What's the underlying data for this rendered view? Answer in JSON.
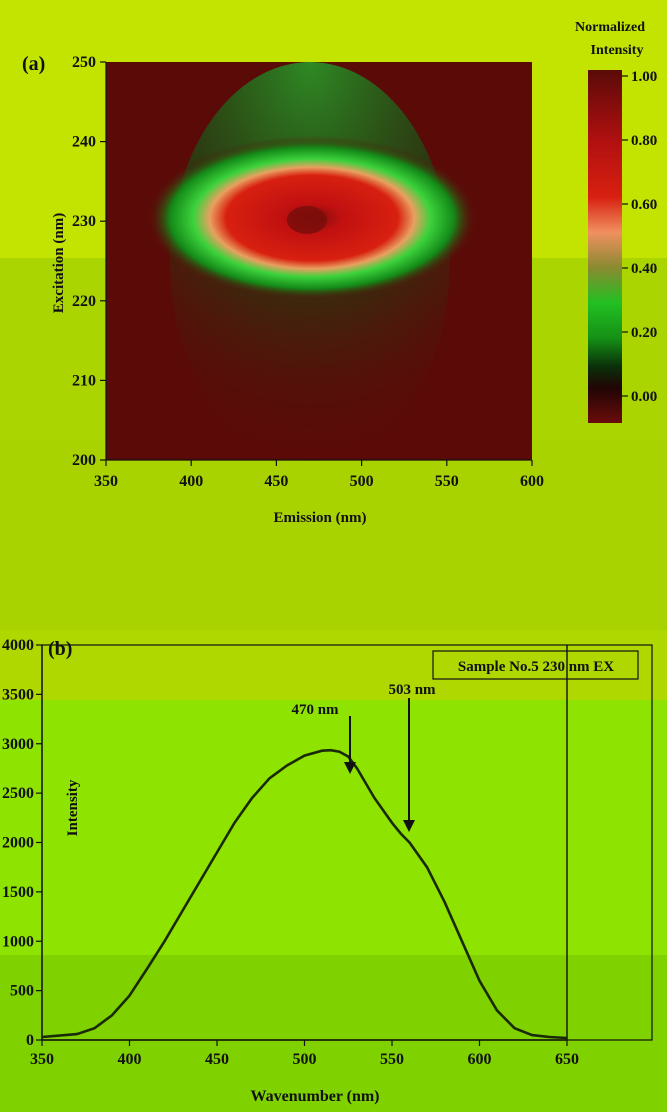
{
  "colors": {
    "band_top": "#c3e300",
    "band_mid": "#abd500",
    "band_b_top": "#aed800",
    "band_b_mid": "#8fe300",
    "band_b_low": "#7fd100",
    "heatmap_bg": "#5a0b08",
    "curve": "#1a2a06"
  },
  "panel_a": {
    "panel_label": "(a)",
    "colorbar_title_line1": "Normalized",
    "colorbar_title_line2": "Intensity",
    "colorbar_ticks": [
      "1.00",
      "0.80",
      "0.60",
      "0.40",
      "0.20",
      "0.00"
    ],
    "ylabel": "Excitation (nm)",
    "xlabel": "Emission (nm)"
  },
  "panel_b": {
    "panel_label": "(b)",
    "legend": "Sample No.5 230 nm EX",
    "annotation_1": "470 nm",
    "annotation_2": "503 nm",
    "ylabel": "Intensity",
    "xlabel": "Wavenumber (nm)"
  },
  "chart_data": [
    {
      "type": "heatmap",
      "xlabel": "Emission (nm)",
      "ylabel": "Excitation (nm)",
      "xlim": [
        350,
        600
      ],
      "ylim": [
        200,
        250
      ],
      "xticks": [
        350,
        400,
        450,
        500,
        550,
        600
      ],
      "yticks": [
        200,
        210,
        220,
        230,
        240,
        250
      ],
      "colorbar": {
        "title": "Normalized Intensity",
        "range": [
          0,
          1
        ],
        "ticks": [
          0.0,
          0.2,
          0.4,
          0.6,
          0.8,
          1.0
        ]
      },
      "peak": {
        "emission": 460,
        "excitation": 230,
        "value": 1.0
      }
    },
    {
      "type": "line",
      "xlabel": "Wavenumber (nm)",
      "ylabel": "Intensity",
      "xlim": [
        350,
        650
      ],
      "ylim": [
        0,
        4000
      ],
      "xticks": [
        350,
        400,
        450,
        500,
        550,
        600,
        650
      ],
      "yticks": [
        0,
        500,
        1000,
        1500,
        2000,
        2500,
        3000,
        3500,
        4000
      ],
      "series": [
        {
          "name": "Sample No.5 230 nm EX",
          "x": [
            350,
            370,
            380,
            390,
            400,
            410,
            420,
            430,
            440,
            450,
            460,
            470,
            480,
            490,
            500,
            510,
            515,
            520,
            525,
            530,
            540,
            550,
            555,
            560,
            570,
            580,
            590,
            600,
            610,
            620,
            630,
            640,
            650
          ],
          "y": [
            30,
            60,
            120,
            250,
            450,
            720,
            1000,
            1300,
            1600,
            1900,
            2200,
            2450,
            2650,
            2780,
            2880,
            2930,
            2935,
            2920,
            2870,
            2750,
            2450,
            2200,
            2090,
            2000,
            1750,
            1400,
            1000,
            600,
            300,
            120,
            50,
            30,
            20
          ]
        }
      ],
      "annotations": [
        {
          "text": "470 nm",
          "x": 520,
          "y": 2930
        },
        {
          "text": "503 nm",
          "x": 555,
          "y": 2090
        }
      ]
    }
  ]
}
